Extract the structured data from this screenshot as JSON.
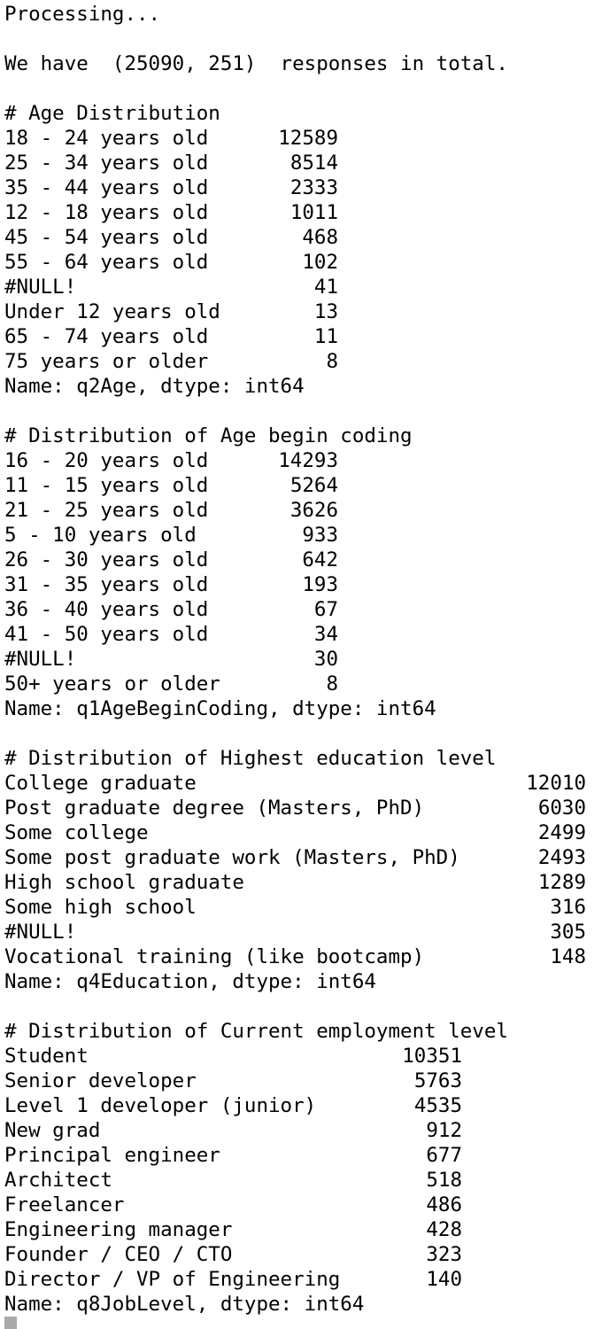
{
  "processing": "Processing...",
  "total": "We have  (25090, 251)  responses in total.",
  "sections": {
    "age": {
      "heading": "# Age Distribution",
      "rows": [
        {
          "label": "18 - 24 years old",
          "value": "12589"
        },
        {
          "label": "25 - 34 years old",
          "value": "8514"
        },
        {
          "label": "35 - 44 years old",
          "value": "2333"
        },
        {
          "label": "12 - 18 years old",
          "value": "1011"
        },
        {
          "label": "45 - 54 years old",
          "value": "468"
        },
        {
          "label": "55 - 64 years old",
          "value": "102"
        },
        {
          "label": "#NULL!",
          "value": "41"
        },
        {
          "label": "Under 12 years old",
          "value": "13"
        },
        {
          "label": "65 - 74 years old",
          "value": "11"
        },
        {
          "label": "75 years or older",
          "value": "8"
        }
      ],
      "footer": "Name: q2Age, dtype: int64"
    },
    "begin": {
      "heading": "# Distribution of Age begin coding",
      "rows": [
        {
          "label": "16 - 20 years old",
          "value": "14293"
        },
        {
          "label": "11 - 15 years old",
          "value": "5264"
        },
        {
          "label": "21 - 25 years old",
          "value": "3626"
        },
        {
          "label": "5 - 10 years old",
          "value": "933"
        },
        {
          "label": "26 - 30 years old",
          "value": "642"
        },
        {
          "label": "31 - 35 years old",
          "value": "193"
        },
        {
          "label": "36 - 40 years old",
          "value": "67"
        },
        {
          "label": "41 - 50 years old",
          "value": "34"
        },
        {
          "label": "#NULL!",
          "value": "30"
        },
        {
          "label": "50+ years or older",
          "value": "8"
        }
      ],
      "footer": "Name: q1AgeBeginCoding, dtype: int64"
    },
    "edu": {
      "heading": "# Distribution of Highest education level",
      "rows": [
        {
          "label": "College graduate",
          "value": "12010"
        },
        {
          "label": "Post graduate degree (Masters, PhD)",
          "value": "6030"
        },
        {
          "label": "Some college",
          "value": "2499"
        },
        {
          "label": "Some post graduate work (Masters, PhD)",
          "value": "2493"
        },
        {
          "label": "High school graduate",
          "value": "1289"
        },
        {
          "label": "Some high school",
          "value": "316"
        },
        {
          "label": "#NULL!",
          "value": "305"
        },
        {
          "label": "Vocational training (like bootcamp)",
          "value": "148"
        }
      ],
      "footer": "Name: q4Education, dtype: int64"
    },
    "job": {
      "heading": "# Distribution of Current employment level",
      "rows": [
        {
          "label": "Student",
          "value": "10351"
        },
        {
          "label": "Senior developer",
          "value": "5763"
        },
        {
          "label": "Level 1 developer (junior)",
          "value": "4535"
        },
        {
          "label": "New grad",
          "value": "912"
        },
        {
          "label": "Principal engineer",
          "value": "677"
        },
        {
          "label": "Architect",
          "value": "518"
        },
        {
          "label": "Freelancer",
          "value": "486"
        },
        {
          "label": "Engineering manager",
          "value": "428"
        },
        {
          "label": "Founder / CEO / CTO",
          "value": "323"
        },
        {
          "label": "Director / VP of Engineering",
          "value": "140"
        }
      ],
      "footer": "Name: q8JobLevel, dtype: int64"
    }
  }
}
